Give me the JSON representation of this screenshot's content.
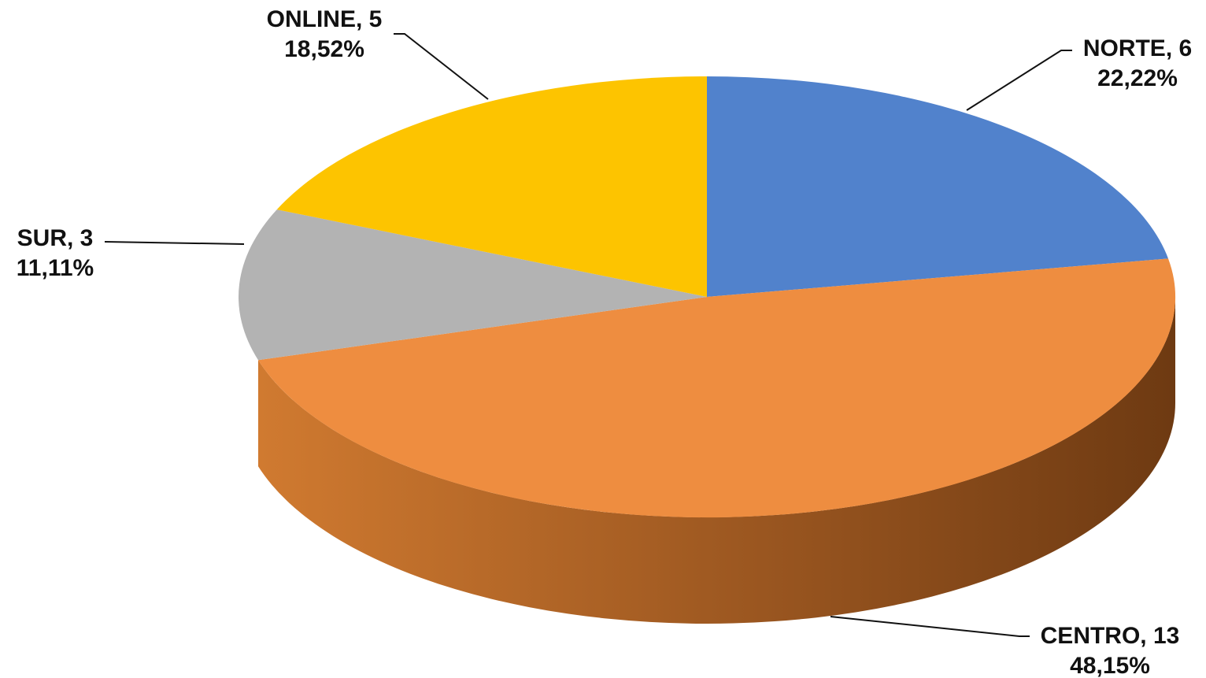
{
  "chart_data": {
    "type": "pie",
    "style": "3d",
    "categories": [
      "NORTE",
      "CENTRO",
      "SUR",
      "ONLINE"
    ],
    "values": [
      6,
      13,
      3,
      5
    ],
    "percent_labels": [
      "22,22%",
      "48,15%",
      "11,11%",
      "18,52%"
    ],
    "data_labels": [
      "NORTE, 6",
      "CENTRO, 13",
      "SUR, 3",
      "ONLINE, 5"
    ],
    "colors": [
      "#5182CC",
      "#EE8D40",
      "#B3B3B3",
      "#FDC400"
    ],
    "start_angle_deg": 90,
    "direction": "clockwise",
    "legend": "none",
    "title": ""
  }
}
